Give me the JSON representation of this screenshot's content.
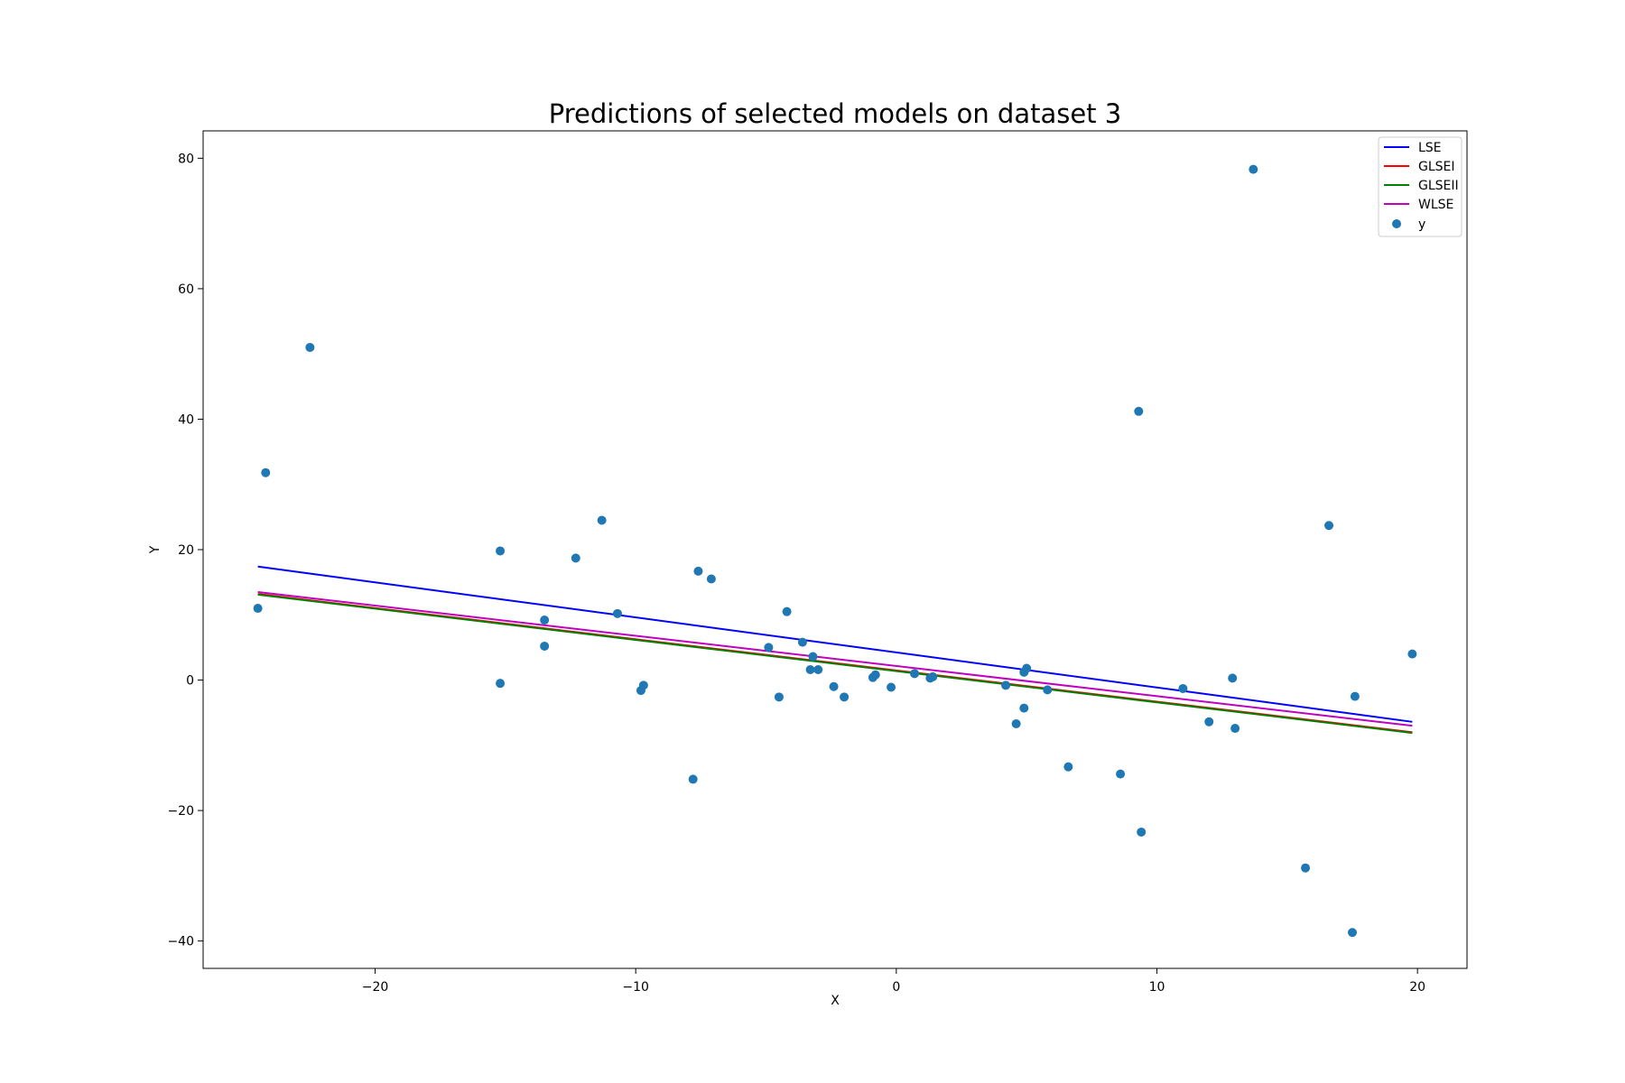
{
  "chart_data": {
    "type": "scatter",
    "title": "Predictions of selected models on dataset 3",
    "xlabel": "X",
    "ylabel": "Y",
    "xlim": [
      -26.6,
      21.9
    ],
    "ylim": [
      -44.2,
      84.2
    ],
    "xticks": [
      -20,
      -10,
      0,
      10,
      20
    ],
    "xtick_labels": [
      "−20",
      "−10",
      "0",
      "10",
      "20"
    ],
    "yticks": [
      -40,
      -20,
      0,
      20,
      40,
      60,
      80
    ],
    "ytick_labels": [
      "−40",
      "−20",
      "0",
      "20",
      "40",
      "60",
      "80"
    ],
    "grid": false,
    "legend_position": "top-right",
    "lines": [
      {
        "name": "LSE",
        "color": "#0000ff",
        "x": [
          -24.5,
          19.8
        ],
        "y": [
          17.4,
          -6.4
        ]
      },
      {
        "name": "GLSEI",
        "color": "#ff0000",
        "x": [
          -24.5,
          19.8
        ],
        "y": [
          13.2,
          -8.0
        ]
      },
      {
        "name": "GLSEII",
        "color": "#008000",
        "x": [
          -24.5,
          19.8
        ],
        "y": [
          13.1,
          -8.1
        ]
      },
      {
        "name": "WLSE",
        "color": "#bf00bf",
        "x": [
          -24.5,
          19.8
        ],
        "y": [
          13.5,
          -7.0
        ]
      }
    ],
    "scatter": {
      "name": "y",
      "color": "#1f77b4",
      "points": [
        [
          -24.5,
          11.0
        ],
        [
          -24.2,
          31.8
        ],
        [
          -22.5,
          51.0
        ],
        [
          -15.2,
          19.8
        ],
        [
          -15.2,
          -0.5
        ],
        [
          -13.5,
          9.2
        ],
        [
          -13.5,
          5.2
        ],
        [
          -12.3,
          18.7
        ],
        [
          -11.3,
          24.5
        ],
        [
          -10.7,
          10.2
        ],
        [
          -9.8,
          -1.6
        ],
        [
          -9.7,
          -0.8
        ],
        [
          -7.8,
          -15.2
        ],
        [
          -7.6,
          16.7
        ],
        [
          -7.1,
          15.5
        ],
        [
          -4.9,
          5.0
        ],
        [
          -4.5,
          -2.6
        ],
        [
          -4.2,
          10.5
        ],
        [
          -3.6,
          5.8
        ],
        [
          -3.3,
          1.6
        ],
        [
          -3.2,
          3.6
        ],
        [
          -3.0,
          1.6
        ],
        [
          -2.4,
          -1.0
        ],
        [
          -2.0,
          -2.6
        ],
        [
          -0.9,
          0.4
        ],
        [
          -0.8,
          0.8
        ],
        [
          -0.2,
          -1.1
        ],
        [
          0.7,
          1.0
        ],
        [
          1.3,
          0.3
        ],
        [
          1.4,
          0.5
        ],
        [
          4.2,
          -0.8
        ],
        [
          4.6,
          -6.7
        ],
        [
          4.9,
          1.2
        ],
        [
          4.9,
          -4.3
        ],
        [
          5.0,
          1.8
        ],
        [
          5.8,
          -1.5
        ],
        [
          6.6,
          -13.3
        ],
        [
          8.6,
          -14.4
        ],
        [
          9.3,
          41.2
        ],
        [
          9.4,
          -23.3
        ],
        [
          11.0,
          -1.3
        ],
        [
          12.0,
          -6.4
        ],
        [
          12.9,
          0.3
        ],
        [
          13.0,
          -7.4
        ],
        [
          13.7,
          78.3
        ],
        [
          15.7,
          -28.8
        ],
        [
          16.6,
          23.7
        ],
        [
          17.5,
          -38.7
        ],
        [
          17.6,
          -2.5
        ],
        [
          19.8,
          4.0
        ]
      ]
    }
  }
}
